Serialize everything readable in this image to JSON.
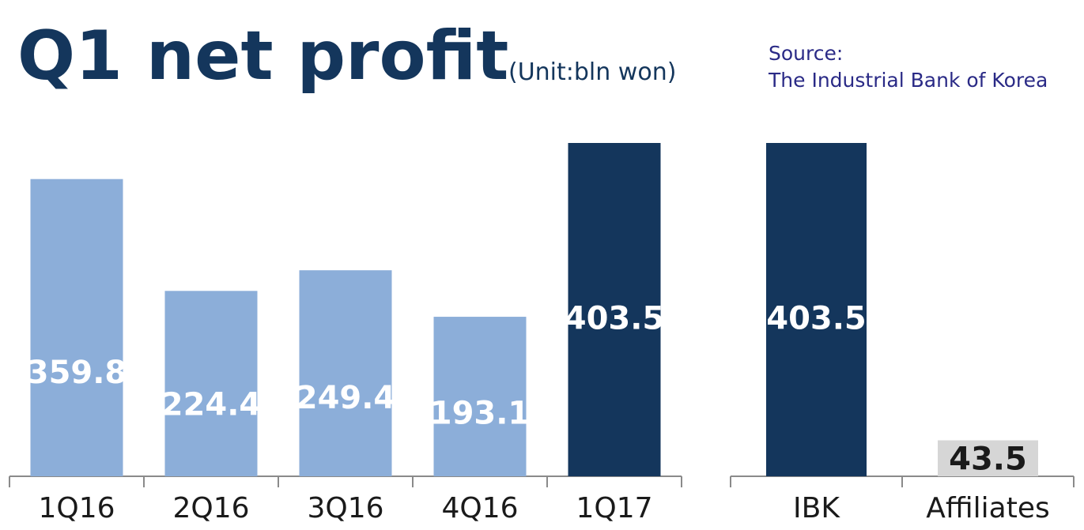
{
  "header": {
    "title": "Q1 net profit",
    "unit": "(Unit:bln won)",
    "source_label": "Source:",
    "source_name": "The Industrial Bank of Korea"
  },
  "colors": {
    "light_bar": "#8caed9",
    "dark_bar": "#14365c",
    "gray_bar": "#d6d6d6",
    "axis": "#8a8a8a",
    "light_text": "#ffffff",
    "dark_text": "#1a1a1a"
  },
  "chart_data": [
    {
      "type": "bar",
      "categories": [
        "1Q16",
        "2Q16",
        "3Q16",
        "4Q16",
        "1Q17"
      ],
      "values": [
        359.8,
        224.4,
        249.4,
        193.1,
        403.5
      ],
      "value_labels": [
        "359.8",
        "224.4",
        "249.4",
        "193.1",
        "403.5"
      ],
      "bar_colors": [
        "light_bar",
        "light_bar",
        "light_bar",
        "light_bar",
        "dark_bar"
      ],
      "ylim": [
        0,
        403.5
      ],
      "grid": false
    },
    {
      "type": "bar",
      "categories": [
        "IBK",
        "Affiliates"
      ],
      "values": [
        403.5,
        43.5
      ],
      "value_labels": [
        "403.5",
        "43.5"
      ],
      "bar_colors": [
        "dark_bar",
        "gray_bar"
      ],
      "ylim": [
        0,
        403.5
      ],
      "grid": false
    }
  ]
}
